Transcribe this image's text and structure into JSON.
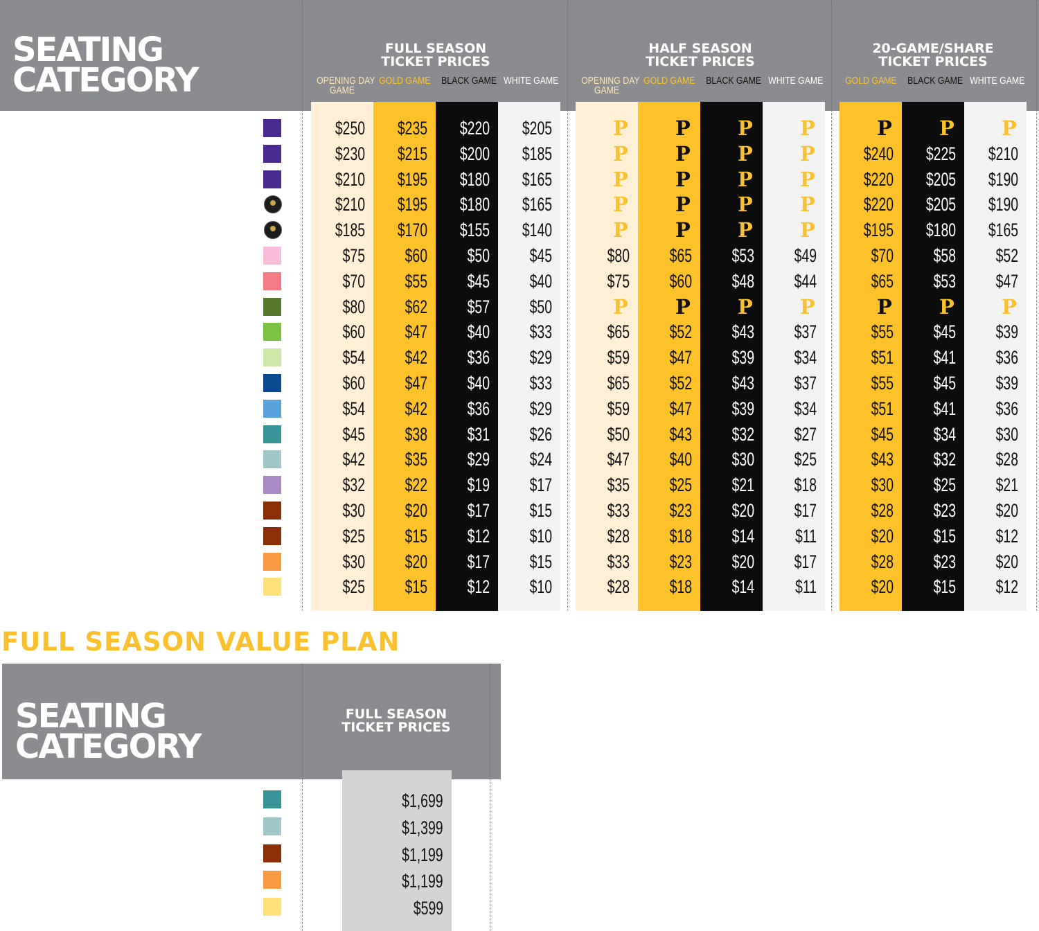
{
  "colors": {
    "gray": "#8b8c8f",
    "opening": "#fff0d5",
    "gold": "#fdc22a",
    "black": "#0d0d0d",
    "white": "#f2f2f2",
    "valueCol": "#d3d4d6"
  },
  "header": {
    "seating_line1": "SEATING",
    "seating_line2": "CATEGORY",
    "full": {
      "line1": "FULL SEASON",
      "line2": "TICKET PRICES"
    },
    "half": {
      "line1": "HALF SEASON",
      "line2": "TICKET PRICES"
    },
    "share": {
      "line1": "20-GAME/SHARE",
      "line2": "TICKET PRICES"
    },
    "sub": {
      "opening_line1": "OPENING DAY",
      "opening_line2": "GAME",
      "gold": "GOLD GAME",
      "black": "BLACK GAME",
      "white": "WHITE GAME"
    }
  },
  "swatches": [
    "#4b2a8f",
    "#4b2a8f",
    "#4b2a8f",
    "club-badge",
    "club-badge",
    "#f6bcd9",
    "#f47a83",
    "#577a2e",
    "#7cc242",
    "#cfe8a8",
    "#0a4a91",
    "#5aa2db",
    "#379394",
    "#9fc7c9",
    "#a88ac4",
    "#8a2f07",
    "#8a2f07",
    "#f99a42",
    "#fde27a"
  ],
  "full_season": {
    "opening": [
      "$250",
      "$230",
      "$210",
      "$210",
      "$185",
      "$75",
      "$70",
      "$80",
      "$60",
      "$54",
      "$60",
      "$54",
      "$45",
      "$42",
      "$32",
      "$30",
      "$25",
      "$30",
      "$25"
    ],
    "gold": [
      "$235",
      "$215",
      "$195",
      "$195",
      "$170",
      "$60",
      "$55",
      "$62",
      "$47",
      "$42",
      "$47",
      "$42",
      "$38",
      "$35",
      "$22",
      "$20",
      "$15",
      "$20",
      "$15"
    ],
    "black": [
      "$220",
      "$200",
      "$180",
      "$180",
      "$155",
      "$50",
      "$45",
      "$57",
      "$40",
      "$36",
      "$40",
      "$36",
      "$31",
      "$29",
      "$19",
      "$17",
      "$12",
      "$17",
      "$12"
    ],
    "white": [
      "$205",
      "$185",
      "$165",
      "$165",
      "$140",
      "$45",
      "$40",
      "$50",
      "$33",
      "$29",
      "$33",
      "$29",
      "$26",
      "$24",
      "$17",
      "$15",
      "$10",
      "$15",
      "$10"
    ]
  },
  "half_season": {
    "opening": [
      "P",
      "P",
      "P",
      "P",
      "P",
      "$80",
      "$75",
      "P",
      "$65",
      "$59",
      "$65",
      "$59",
      "$50",
      "$47",
      "$35",
      "$33",
      "$28",
      "$33",
      "$28"
    ],
    "gold": [
      "P",
      "P",
      "P",
      "P",
      "P",
      "$65",
      "$60",
      "P",
      "$52",
      "$47",
      "$52",
      "$47",
      "$43",
      "$40",
      "$25",
      "$23",
      "$18",
      "$23",
      "$18"
    ],
    "black": [
      "P",
      "P",
      "P",
      "P",
      "P",
      "$53",
      "$48",
      "P",
      "$43",
      "$39",
      "$43",
      "$39",
      "$32",
      "$30",
      "$21",
      "$20",
      "$14",
      "$20",
      "$14"
    ],
    "white": [
      "P",
      "P",
      "P",
      "P",
      "P",
      "$49",
      "$44",
      "P",
      "$37",
      "$34",
      "$37",
      "$34",
      "$27",
      "$25",
      "$18",
      "$17",
      "$11",
      "$17",
      "$11"
    ]
  },
  "share": {
    "gold": [
      "P",
      "$240",
      "$220",
      "$220",
      "$195",
      "$70",
      "$65",
      "P",
      "$55",
      "$51",
      "$55",
      "$51",
      "$45",
      "$43",
      "$30",
      "$28",
      "$20",
      "$28",
      "$20"
    ],
    "black": [
      "P",
      "$225",
      "$205",
      "$205",
      "$180",
      "$58",
      "$53",
      "P",
      "$45",
      "$41",
      "$45",
      "$41",
      "$34",
      "$32",
      "$25",
      "$23",
      "$15",
      "$23",
      "$15"
    ],
    "white": [
      "P",
      "$210",
      "$190",
      "$190",
      "$165",
      "$52",
      "$47",
      "P",
      "$39",
      "$36",
      "$39",
      "$36",
      "$30",
      "$28",
      "$21",
      "$20",
      "$12",
      "$20",
      "$12"
    ]
  },
  "value_plan": {
    "title": "FULL SEASON VALUE PLAN",
    "seating_line1": "SEATING",
    "seating_line2": "CATEGORY",
    "col_line1": "FULL SEASON",
    "col_line2": "TICKET PRICES",
    "swatches": [
      "#379394",
      "#9fc7c9",
      "#8a2f07",
      "#f99a42",
      "#fde27a"
    ],
    "prices": [
      "$1,699",
      "$1,399",
      "$1,199",
      "$1,199",
      "$599"
    ]
  }
}
